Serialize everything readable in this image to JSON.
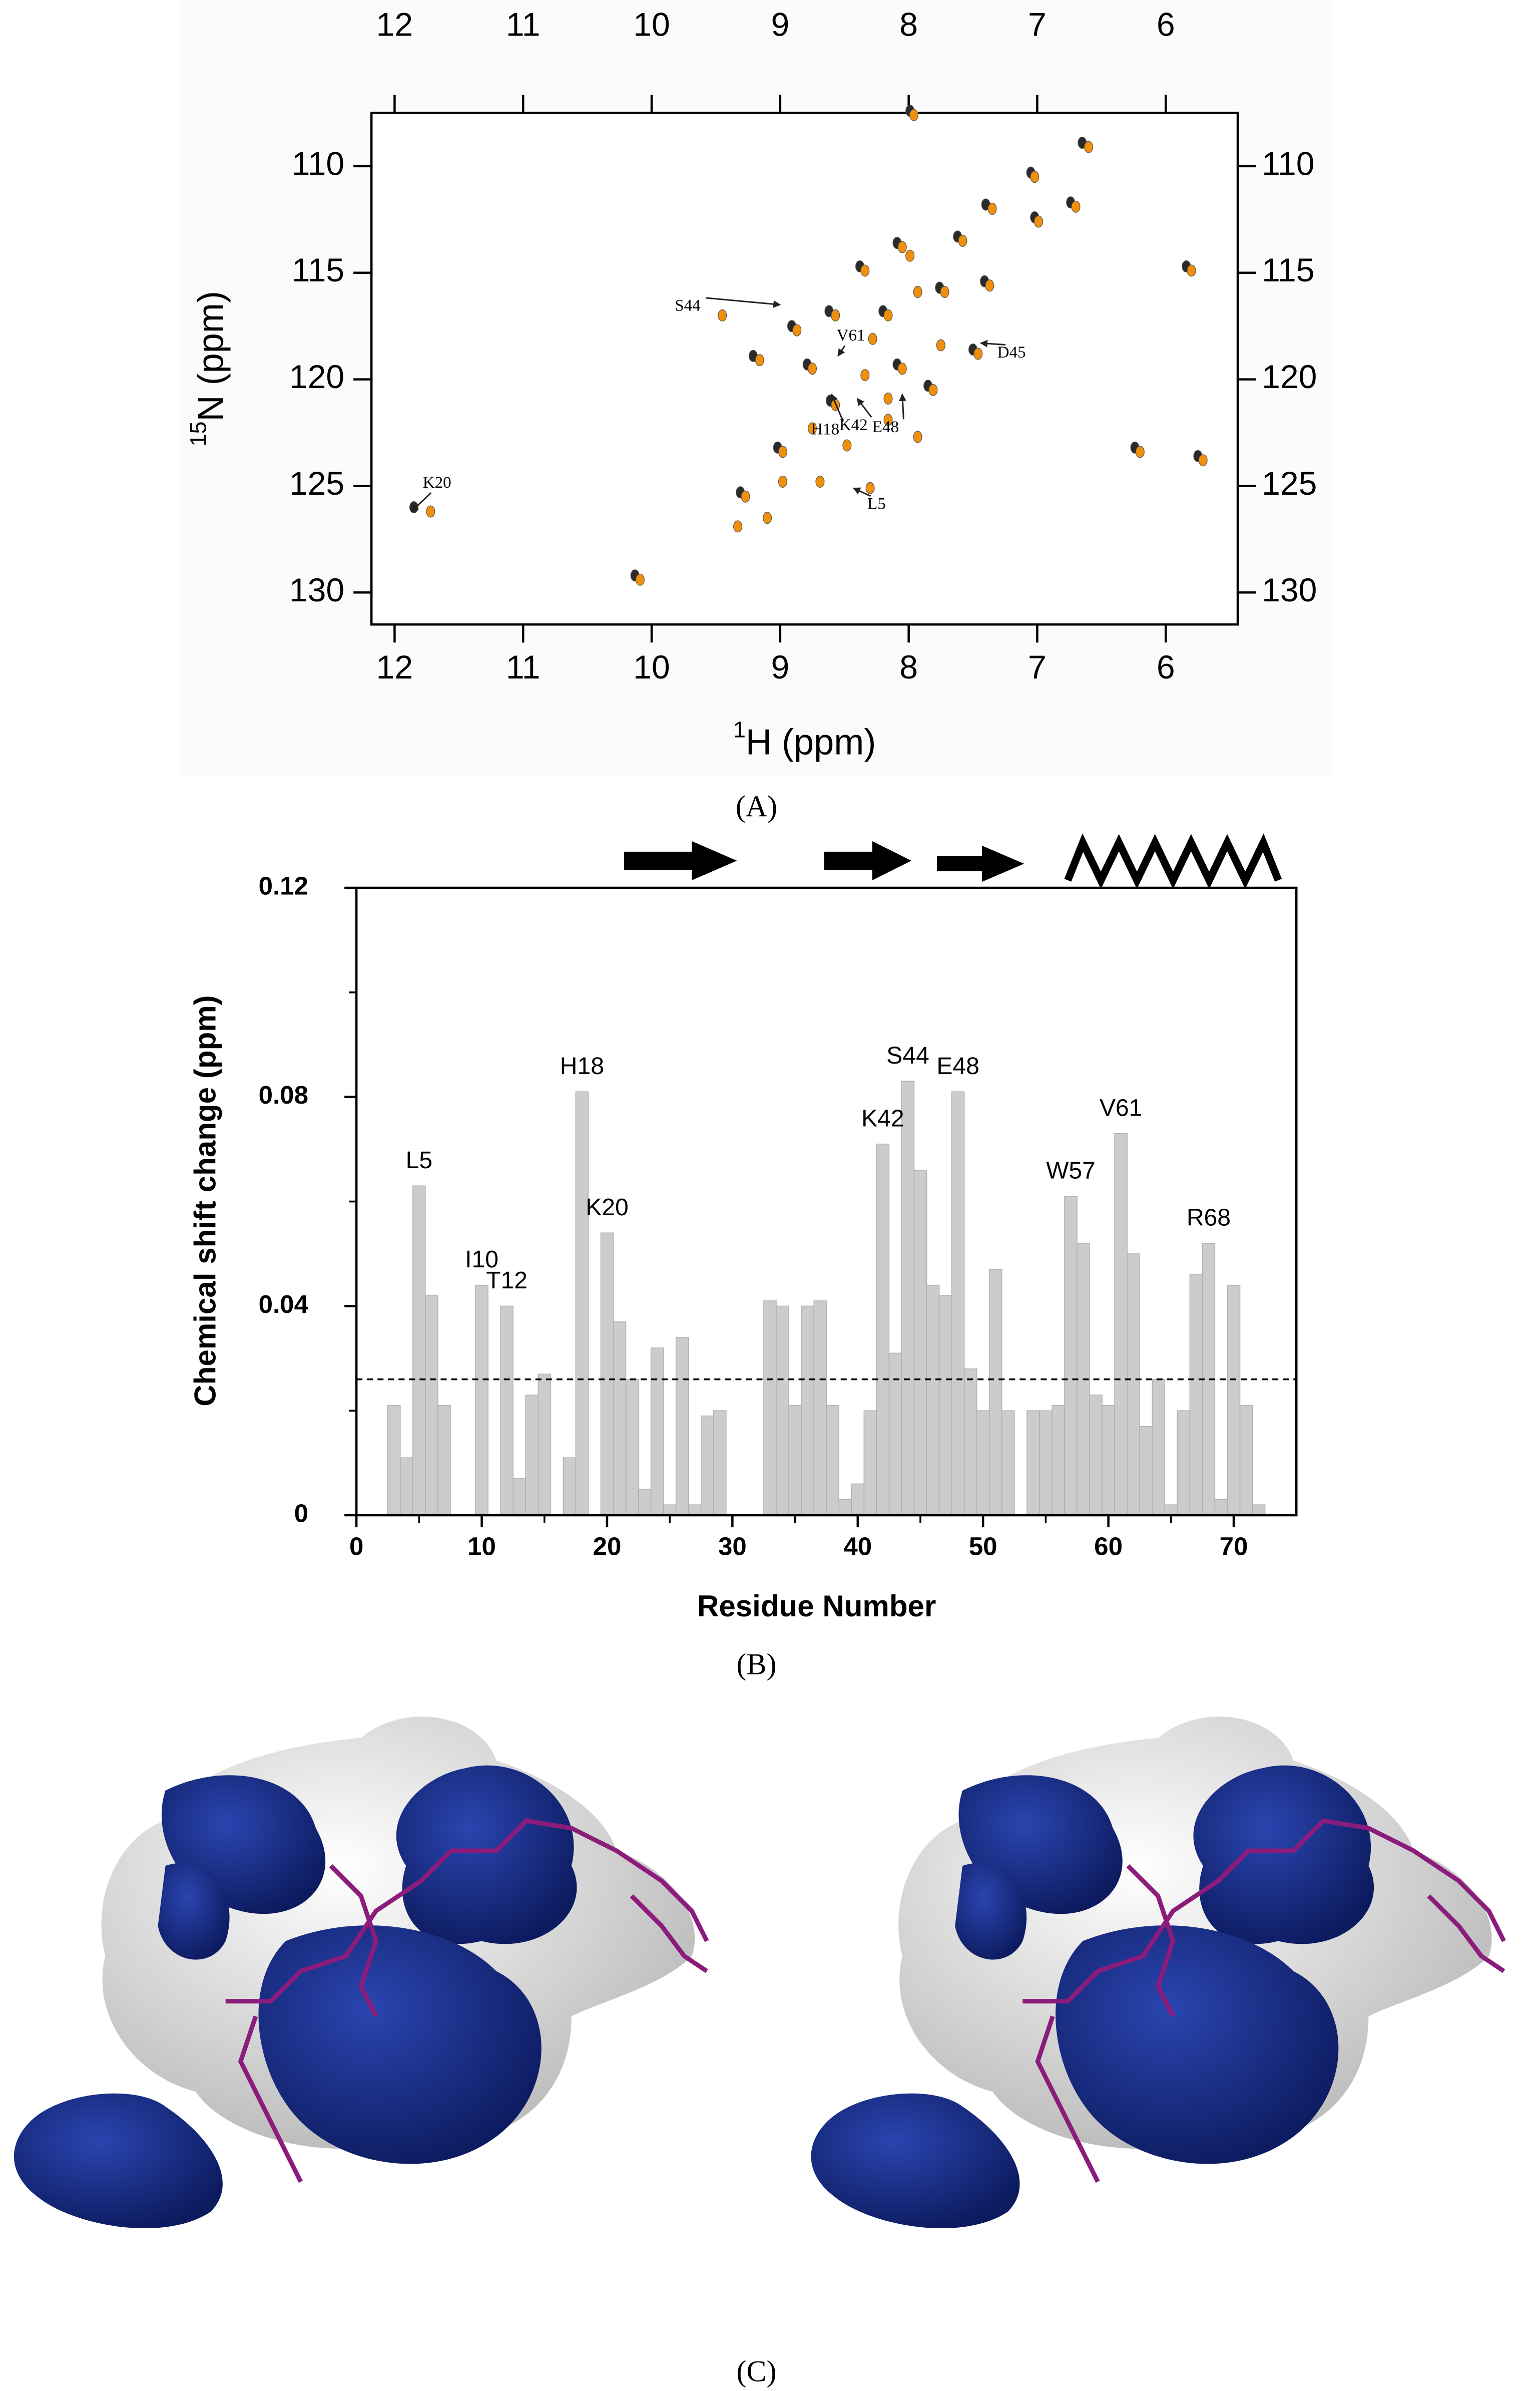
{
  "chart_data": [
    {
      "type": "scatter",
      "xlabel_sup": "1",
      "xlabel": "H  (ppm)",
      "ylabel_sup": "15",
      "ylabel": "N  (ppm)",
      "xlim": [
        12.18,
        5.44
      ],
      "xticks": [
        12,
        11,
        10,
        9,
        8,
        7,
        6
      ],
      "ylim": [
        131.5,
        107.5
      ],
      "yticks": [
        110,
        115,
        120,
        125,
        130
      ],
      "series": [
        {
          "color": "#2a2a2a",
          "x": [
            7.99,
            6.65,
            7.05,
            7.02,
            6.74,
            7.4,
            8.09,
            7.62,
            8.38,
            7.76,
            7.41,
            8.2,
            8.62,
            8.91,
            9.21,
            8.79,
            8.09,
            7.5,
            7.85,
            8.61,
            9.02,
            9.31,
            6.24,
            5.75,
            5.84,
            10.13,
            11.85
          ],
          "y": [
            107.4,
            108.9,
            110.3,
            112.4,
            111.7,
            111.8,
            113.6,
            113.3,
            114.7,
            115.7,
            115.4,
            116.8,
            116.8,
            117.5,
            118.9,
            119.3,
            119.3,
            118.6,
            120.3,
            121.0,
            123.2,
            125.3,
            123.2,
            123.6,
            114.7,
            129.2,
            126.0
          ]
        },
        {
          "color": "#f0900a",
          "x": [
            7.96,
            6.6,
            7.02,
            6.99,
            6.7,
            7.35,
            8.05,
            7.58,
            8.34,
            7.99,
            7.72,
            7.37,
            7.93,
            8.16,
            8.57,
            8.28,
            8.87,
            9.16,
            8.75,
            8.34,
            8.05,
            7.75,
            7.46,
            7.81,
            8.16,
            8.57,
            8.75,
            8.16,
            8.98,
            8.98,
            9.27,
            9.1,
            9.33,
            8.69,
            7.93,
            9.45,
            6.2,
            5.71,
            5.8,
            10.09,
            11.72,
            8.3,
            8.48
          ],
          "y": [
            107.6,
            109.1,
            110.5,
            112.6,
            111.9,
            112.0,
            113.8,
            113.5,
            114.9,
            114.2,
            115.9,
            115.6,
            115.9,
            117.0,
            117.0,
            118.1,
            117.7,
            119.1,
            119.5,
            119.8,
            119.5,
            118.4,
            118.8,
            120.5,
            120.9,
            121.2,
            122.3,
            121.9,
            123.4,
            124.8,
            125.5,
            126.5,
            126.9,
            124.8,
            122.7,
            117.0,
            123.4,
            123.8,
            114.9,
            129.4,
            126.2,
            125.1,
            123.1
          ]
        }
      ],
      "annotations": [
        {
          "text": "S44",
          "x": 9.72,
          "y": 116.6,
          "tip": [
            9.0,
            116.5
          ]
        },
        {
          "text": "V61",
          "x": 8.45,
          "y": 118.0,
          "tip": [
            8.55,
            118.9
          ]
        },
        {
          "text": "D45",
          "x": 7.2,
          "y": 118.8,
          "tip": [
            7.44,
            118.3
          ]
        },
        {
          "text": "K20",
          "x": 11.67,
          "y": 124.9,
          "tip": [
            11.87,
            126.2
          ]
        },
        {
          "text": "H18",
          "x": 8.65,
          "y": 122.4,
          "tip": [
            8.6,
            120.7
          ]
        },
        {
          "text": "K42",
          "x": 8.43,
          "y": 122.2,
          "tip": [
            8.4,
            120.9
          ]
        },
        {
          "text": "E48",
          "x": 8.18,
          "y": 122.3,
          "tip": [
            8.05,
            120.7
          ]
        },
        {
          "text": "L5",
          "x": 8.25,
          "y": 125.9,
          "tip": [
            8.43,
            125.1
          ]
        }
      ]
    },
    {
      "type": "bar",
      "xlabel": "Residue Number",
      "ylabel": "Chemical shift change (ppm)",
      "xlim": [
        0,
        75
      ],
      "xticks": [
        0,
        10,
        20,
        30,
        40,
        50,
        60,
        70
      ],
      "xminorticks": [
        5,
        15,
        25,
        35,
        45,
        55,
        65
      ],
      "ylim": [
        0,
        0.12
      ],
      "yticks": [
        0,
        0.04,
        0.08,
        0.12
      ],
      "yminorticks": [
        0.02,
        0.06,
        0.1
      ],
      "color": "#cccccc",
      "threshold": 0.026,
      "x": [
        3,
        4,
        5,
        6,
        7,
        10,
        12,
        13,
        14,
        15,
        17,
        18,
        20,
        21,
        22,
        23,
        24,
        25,
        26,
        27,
        28,
        29,
        33,
        34,
        35,
        36,
        37,
        38,
        39,
        40,
        41,
        42,
        43,
        44,
        45,
        46,
        47,
        48,
        49,
        50,
        51,
        52,
        54,
        55,
        56,
        57,
        58,
        59,
        60,
        61,
        62,
        63,
        64,
        65,
        66,
        67,
        68,
        69,
        70,
        71,
        72
      ],
      "values": [
        0.021,
        0.011,
        0.063,
        0.042,
        0.021,
        0.044,
        0.04,
        0.007,
        0.023,
        0.027,
        0.011,
        0.081,
        0.054,
        0.037,
        0.026,
        0.005,
        0.032,
        0.002,
        0.034,
        0.002,
        0.019,
        0.02,
        0.041,
        0.04,
        0.021,
        0.04,
        0.041,
        0.021,
        0.003,
        0.006,
        0.02,
        0.071,
        0.031,
        0.083,
        0.066,
        0.044,
        0.042,
        0.081,
        0.028,
        0.02,
        0.047,
        0.02,
        0.02,
        0.02,
        0.021,
        0.061,
        0.052,
        0.023,
        0.021,
        0.073,
        0.05,
        0.017,
        0.026,
        0.002,
        0.02,
        0.046,
        0.052,
        0.003,
        0.044,
        0.021,
        0.002
      ],
      "annotations": [
        {
          "text": "L5",
          "x": 5
        },
        {
          "text": "I10",
          "x": 10
        },
        {
          "text": "T12",
          "x": 12
        },
        {
          "text": "H18",
          "x": 18
        },
        {
          "text": "K20",
          "x": 20
        },
        {
          "text": "K42",
          "x": 42
        },
        {
          "text": "S44",
          "x": 44
        },
        {
          "text": "E48",
          "x": 48
        },
        {
          "text": "W57",
          "x": 57
        },
        {
          "text": "V61",
          "x": 61
        },
        {
          "text": "R68",
          "x": 68
        }
      ]
    }
  ],
  "panel_labels": [
    "(A)",
    "(B)",
    "(C)"
  ]
}
